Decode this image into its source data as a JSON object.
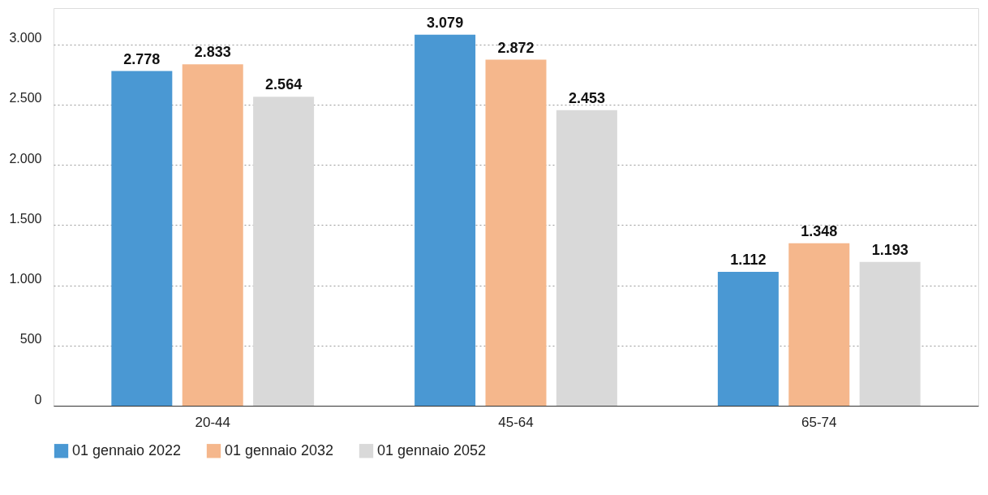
{
  "chart_data": {
    "type": "bar",
    "categories": [
      "20-44",
      "45-64",
      "65-74"
    ],
    "series": [
      {
        "name": "01 gennaio 2022",
        "color": "#4a98d3",
        "values": [
          2778,
          3079,
          1112
        ],
        "value_labels": [
          "2.778",
          "3.079",
          "1.112"
        ]
      },
      {
        "name": "01 gennaio 2032",
        "color": "#f5b78c",
        "values": [
          2833,
          2872,
          1348
        ],
        "value_labels": [
          "2.833",
          "2.872",
          "1.348"
        ]
      },
      {
        "name": "01 gennaio 2052",
        "color": "#d9d9d9",
        "values": [
          2564,
          2453,
          1193
        ],
        "value_labels": [
          "2.564",
          "2.453",
          "1.193"
        ]
      }
    ],
    "ylim": [
      0,
      3300
    ],
    "yticks": [
      {
        "value": 0,
        "label": "0"
      },
      {
        "value": 500,
        "label": "500"
      },
      {
        "value": 1000,
        "label": "1.000"
      },
      {
        "value": 1500,
        "label": "1.500"
      },
      {
        "value": 2000,
        "label": "2.000"
      },
      {
        "value": 2500,
        "label": "2.500"
      },
      {
        "value": 3000,
        "label": "3.000"
      }
    ],
    "grid": "y",
    "legend": "bottom"
  }
}
